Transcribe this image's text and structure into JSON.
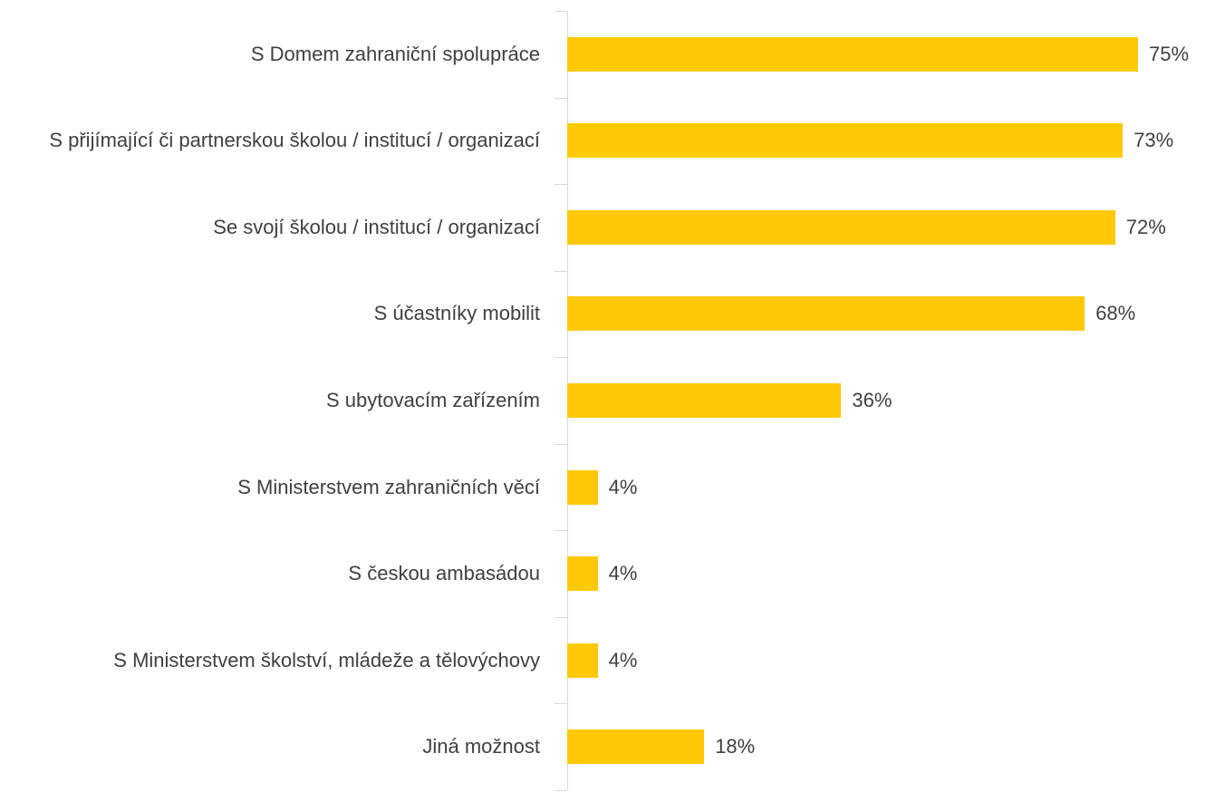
{
  "chart_data": {
    "type": "barh",
    "categories": [
      "S Domem zahraniční spolupráce",
      "S přijímající či partnerskou školou / institucí / organizací",
      "Se svojí školou / institucí / organizací",
      "S účastníky mobilit",
      "S ubytovacím zařízením",
      "S Ministerstvem zahraničních věcí",
      "S českou ambasádou",
      "S Ministerstvem školství, mládeže a tělovýchovy",
      "Jiná možnost"
    ],
    "values": [
      75,
      73,
      72,
      68,
      36,
      4,
      4,
      4,
      18
    ],
    "value_labels": [
      "75%",
      "73%",
      "72%",
      "68%",
      "36%",
      "4%",
      "4%",
      "4%",
      "18%"
    ],
    "color": "#ffc907"
  }
}
